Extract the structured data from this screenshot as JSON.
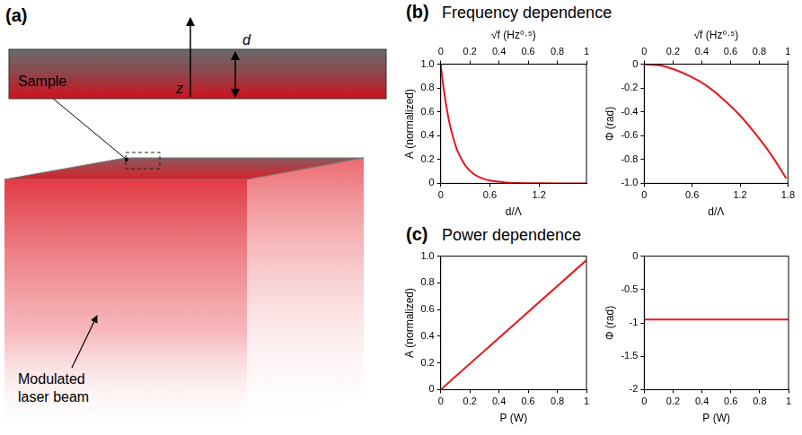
{
  "panels": [
    {
      "letter": "(a)",
      "labels": {
        "sample": "Sample",
        "thickness": "d",
        "depth": "z",
        "beam": "Modulated laser beam"
      }
    },
    {
      "letter": "(b)",
      "title": "Frequency dependence"
    },
    {
      "letter": "(c)",
      "title": "Power dependence"
    }
  ],
  "chart_data": [
    {
      "type": "line",
      "x_label": "d/Λ",
      "y_label": "A (normalized)",
      "x2_label": "√f (Hz⁰·⁵)",
      "x": [
        0,
        0.02,
        0.05,
        0.1,
        0.15,
        0.2,
        0.25,
        0.3,
        0.4,
        0.5,
        0.6,
        0.8,
        1.0,
        1.2,
        1.4,
        1.6,
        1.78
      ],
      "values": [
        1,
        0.88,
        0.73,
        0.53,
        0.39,
        0.28,
        0.21,
        0.15,
        0.08,
        0.043,
        0.023,
        0.007,
        0.002,
        0.001,
        0,
        0,
        0
      ],
      "color": "#e8161b",
      "xlim": [
        0,
        1.78
      ],
      "xticks": [
        0,
        0.6,
        1.2
      ],
      "x2lim": [
        0,
        1
      ],
      "x2ticks": [
        0,
        0.2,
        0.4,
        0.6,
        0.8,
        1
      ],
      "ylim": [
        0,
        1
      ],
      "yticks": [
        0,
        0.2,
        0.4,
        0.6,
        0.8,
        {
          "value": 1,
          "label": "1.0"
        }
      ],
      "grid": false
    },
    {
      "type": "line",
      "x_label": "d/Λ",
      "y_label": "Φ (rad)",
      "x2_label": "√f (Hz⁰·⁵)",
      "x": [
        0,
        0.2,
        0.4,
        0.6,
        0.8,
        1.0,
        1.2,
        1.4,
        1.6,
        1.78
      ],
      "values": [
        0,
        -0.01,
        -0.05,
        -0.11,
        -0.19,
        -0.3,
        -0.43,
        -0.59,
        -0.77,
        -0.96
      ],
      "color": "#e8161b",
      "xlim": [
        0,
        1.8
      ],
      "xticks": [
        0,
        0.6,
        1.2,
        1.8
      ],
      "x2lim": [
        0,
        1
      ],
      "x2ticks": [
        0,
        0.2,
        0.4,
        0.6,
        0.8,
        1
      ],
      "ylim": [
        -1,
        0
      ],
      "yticks": [
        {
          "value": -1,
          "label": "-1.0"
        },
        -0.8,
        -0.6,
        -0.4,
        -0.2,
        0
      ],
      "grid": false
    },
    {
      "type": "line",
      "x_label": "P (W)",
      "y_label": "A (normalized)",
      "x": [
        0,
        1
      ],
      "values": [
        0,
        0.97
      ],
      "color": "#e8161b",
      "xlim": [
        0,
        1
      ],
      "xticks": [
        0,
        0.2,
        0.4,
        0.6,
        0.8,
        1
      ],
      "ylim": [
        0,
        1
      ],
      "yticks": [
        0,
        0.2,
        0.4,
        0.6,
        0.8,
        {
          "value": 1,
          "label": "1.0"
        }
      ],
      "grid": false
    },
    {
      "type": "line",
      "x_label": "P (W)",
      "y_label": "Φ (rad)",
      "x": [
        0,
        1
      ],
      "values": [
        -0.95,
        -0.95
      ],
      "color": "#e8161b",
      "xlim": [
        0,
        1
      ],
      "xticks": [
        0,
        0.2,
        0.4,
        0.6,
        0.8,
        1
      ],
      "ylim": [
        -2,
        0
      ],
      "yticks": [
        -2,
        -1.5,
        -1,
        -0.5,
        0
      ],
      "grid": false
    }
  ]
}
